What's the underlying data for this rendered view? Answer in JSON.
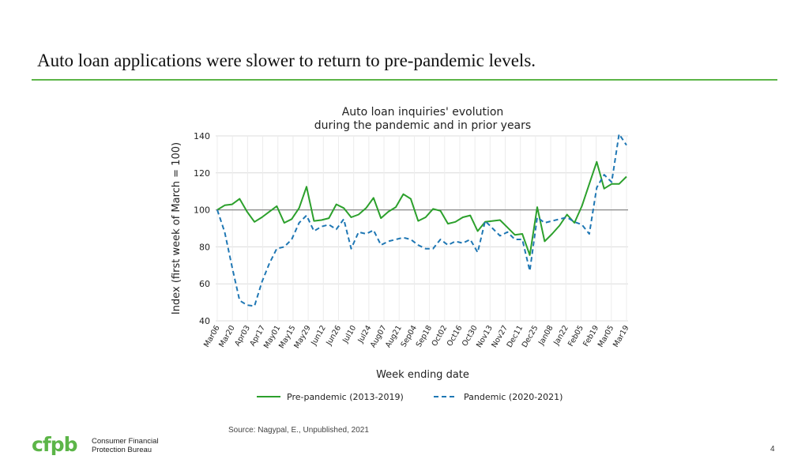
{
  "slide": {
    "title": "Auto loan applications were slower to return to pre-pandemic levels.",
    "source": "Source: Nagypal, E., Unpublished, 2021",
    "page_number": "4",
    "accent_color": "#5cb548"
  },
  "logo": {
    "mark": "cfpb",
    "line1": "Consumer Financial",
    "line2": "Protection Bureau",
    "color": "#5cb548"
  },
  "chart_data": {
    "type": "line",
    "title_line1": "Auto loan inquiries' evolution",
    "title_line2": "during the pandemic and in prior years",
    "xlabel": "Week ending date",
    "ylabel": "Index (first week of March = 100)",
    "ylim": [
      40,
      140
    ],
    "yticks": [
      40,
      60,
      80,
      100,
      120,
      140
    ],
    "reference_line": 100,
    "grid": true,
    "legend_position": "bottom",
    "tick_labels": [
      "Mar06",
      "Mar20",
      "Apr03",
      "Apr17",
      "May01",
      "May15",
      "May29",
      "Jun12",
      "Jun26",
      "Jul10",
      "Jul24",
      "Aug07",
      "Aug21",
      "Sep04",
      "Sep18",
      "Oct02",
      "Oct16",
      "Oct30",
      "Nov13",
      "Nov27",
      "Dec11",
      "Dec25",
      "Jan08",
      "Jan22",
      "Feb05",
      "Feb19",
      "Mar05",
      "Mar19"
    ],
    "series": [
      {
        "name": "Pre-pandemic (2013-2019)",
        "color": "#2ca02c",
        "style": "solid",
        "values": [
          100,
          102.5,
          103,
          106,
          99,
          93.5,
          96,
          99,
          102,
          93,
          95,
          101,
          112.5,
          94,
          94.5,
          95.5,
          103,
          101,
          96,
          97.5,
          101,
          106.5,
          95.5,
          99,
          101.5,
          108.5,
          106,
          94,
          96,
          100.5,
          99.5,
          92.5,
          93.5,
          96,
          97,
          88.5,
          93.5,
          94,
          94.5,
          90.5,
          86.5,
          87,
          75.5,
          101.5,
          83,
          87,
          91.5,
          97.5,
          93,
          102,
          114,
          126,
          111.5,
          114,
          114,
          118
        ]
      },
      {
        "name": "Pandemic (2020-2021)",
        "color": "#1f77b4",
        "style": "dashed",
        "values": [
          100,
          88,
          69,
          51,
          48.5,
          48,
          61,
          71,
          79,
          80,
          84,
          93,
          97,
          88.5,
          91,
          92,
          89.5,
          95,
          79,
          88,
          87,
          89,
          81,
          83,
          84,
          85,
          84,
          81,
          79,
          79,
          84,
          81,
          83,
          82,
          84,
          77,
          94,
          90,
          86,
          88,
          84,
          84,
          67,
          96,
          93,
          94,
          95,
          96,
          93.5,
          92,
          87,
          112,
          119,
          115,
          141,
          135
        ]
      }
    ]
  }
}
